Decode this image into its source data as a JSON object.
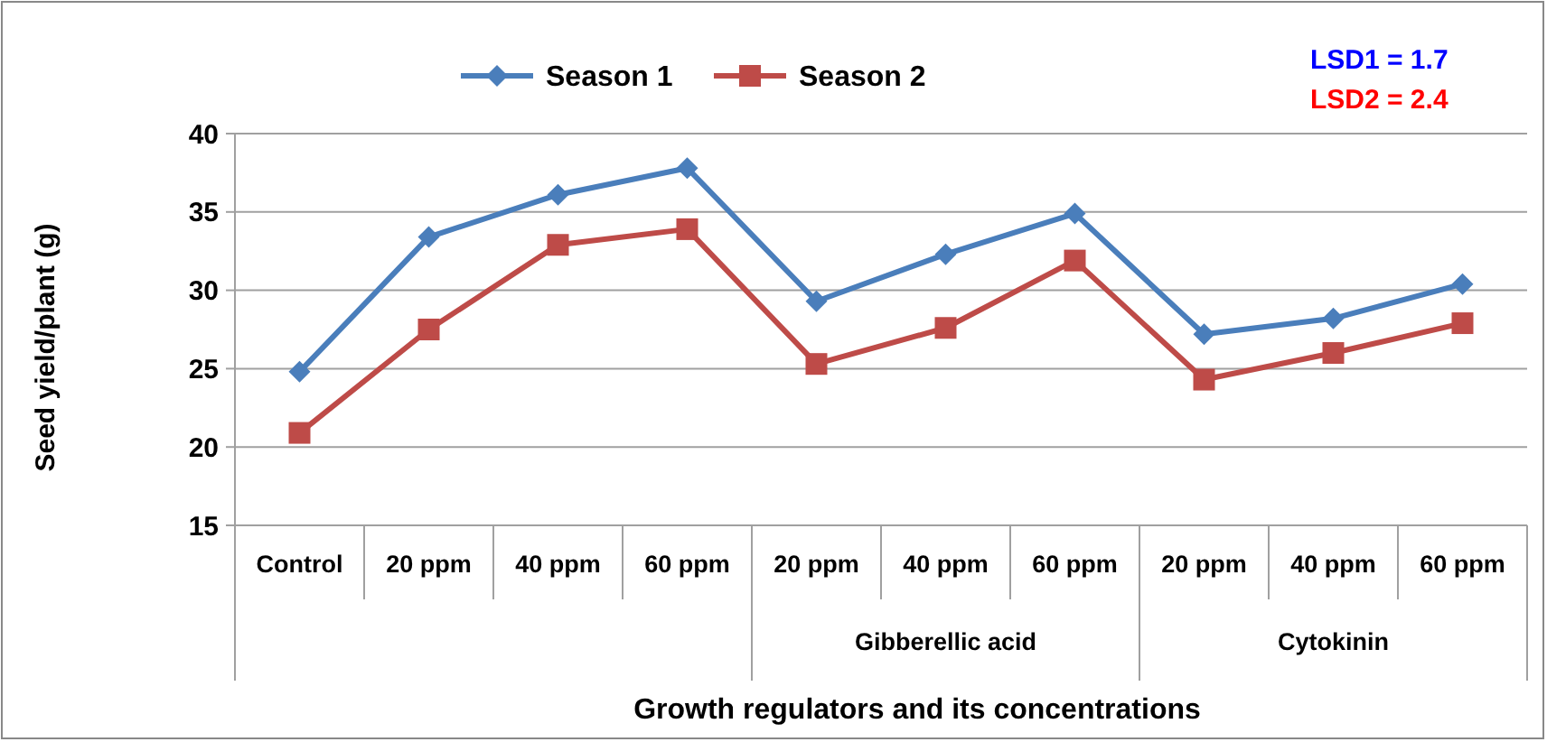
{
  "chart_data": {
    "type": "line",
    "xlabel": "Growth regulators and its concentrations",
    "ylabel": "Seed yield/plant (g)",
    "categories": [
      "Control",
      "20 ppm",
      "40 ppm",
      "60 ppm",
      "20 ppm",
      "40 ppm",
      "60 ppm",
      "20 ppm",
      "40 ppm",
      "60 ppm"
    ],
    "series": [
      {
        "name": "Season 1",
        "color": "#4a7ebb",
        "marker": "diamond",
        "values": [
          24.8,
          33.4,
          36.1,
          37.8,
          29.3,
          32.3,
          34.9,
          27.2,
          28.2,
          30.4
        ]
      },
      {
        "name": "Season 2",
        "color": "#be4b48",
        "marker": "square",
        "values": [
          20.9,
          27.5,
          32.9,
          33.9,
          25.3,
          27.6,
          31.9,
          24.3,
          26.0,
          27.9
        ]
      }
    ],
    "ylim": [
      15,
      40
    ],
    "yticks": [
      15,
      20,
      25,
      30,
      35,
      40
    ],
    "grid": "y",
    "legend": "top",
    "line_style": "solid",
    "annotations": [
      "Gibberellic acid",
      "Cytokinin",
      "LSD1 = 1.7",
      "LSD2 = 2.4"
    ]
  }
}
